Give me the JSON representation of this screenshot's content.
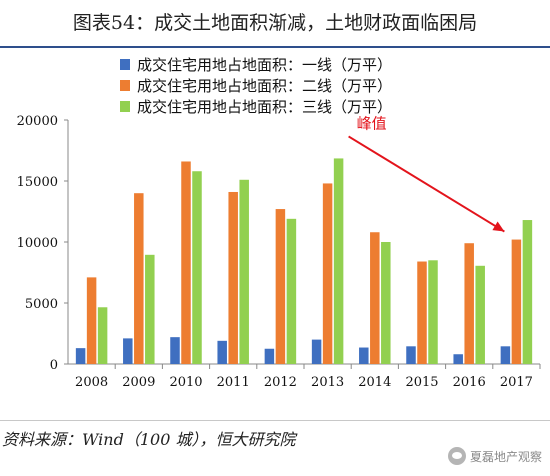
{
  "header": {
    "title": "图表54：成交土地面积渐减，土地财政面临困局"
  },
  "footer": {
    "source": "资料来源：Wind（100 城），恒大研究院",
    "watermark": "夏磊地产观察"
  },
  "colors": {
    "tier1": "#3f6fc0",
    "tier2": "#ed7d31",
    "tier3": "#92d050",
    "annotation": "#e3141c",
    "rule": "#2e4f8c"
  },
  "chart_data": {
    "type": "bar",
    "title": "图表54：成交土地面积渐减，土地财政面临困局",
    "categories": [
      "2008",
      "2009",
      "2010",
      "2011",
      "2012",
      "2013",
      "2014",
      "2015",
      "2016",
      "2017"
    ],
    "series": [
      {
        "name": "成交住宅用地占地面积：一线（万平）",
        "values": [
          1300,
          2100,
          2200,
          1900,
          1250,
          2000,
          1350,
          1450,
          800,
          1450
        ]
      },
      {
        "name": "成交住宅用地占地面积：二线（万平）",
        "values": [
          7100,
          14000,
          16600,
          14100,
          12700,
          14800,
          10800,
          8400,
          9900,
          10200
        ]
      },
      {
        "name": "成交住宅用地占地面积：三线（万平）",
        "values": [
          4650,
          8950,
          15800,
          15100,
          11900,
          16850,
          10000,
          8500,
          8050,
          11800
        ]
      }
    ],
    "ylim": [
      0,
      20000
    ],
    "yticks": [
      "0",
      "5000",
      "10000",
      "15000",
      "20000"
    ],
    "grid": false,
    "legend_position": "top",
    "annotations": [
      {
        "text": "峰值",
        "from_category": "2013",
        "to_category": "2017"
      }
    ]
  }
}
